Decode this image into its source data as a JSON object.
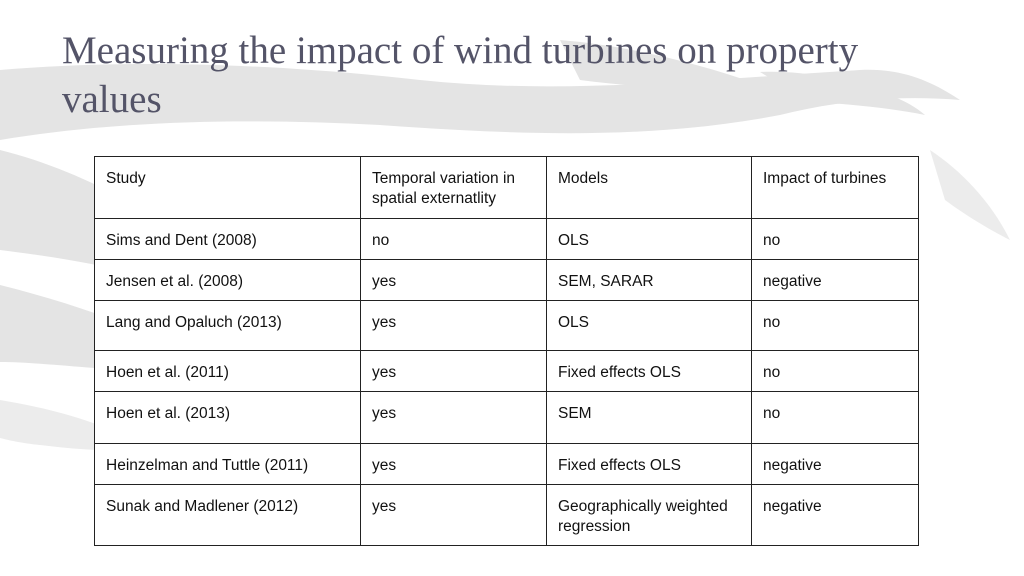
{
  "slide": {
    "title": "Measuring the impact of wind turbines on property values"
  },
  "table": {
    "headers": [
      "Study",
      "Temporal variation in spatial externatlity",
      "Models",
      "Impact of turbines"
    ],
    "rows": [
      [
        "Sims and Dent (2008)",
        "no",
        "OLS",
        "no"
      ],
      [
        "Jensen et al. (2008)",
        "yes",
        "SEM, SARAR",
        "negative"
      ],
      [
        "Lang and Opaluch (2013)",
        "yes",
        "OLS",
        "no"
      ],
      [
        "Hoen et al. (2011)",
        "yes",
        "Fixed effects OLS",
        "no"
      ],
      [
        "Hoen et al. (2013)",
        "yes",
        "SEM",
        "no"
      ],
      [
        "Heinzelman and Tuttle (2011)",
        "yes",
        "Fixed effects OLS",
        "negative"
      ],
      [
        "Sunak and Madlener (2012)",
        "yes",
        "Geographically weighted regression",
        "negative"
      ]
    ]
  },
  "colors": {
    "title": "#545468",
    "watermark": "#e2e2e2",
    "table_border": "#222222",
    "text": "#111111"
  }
}
